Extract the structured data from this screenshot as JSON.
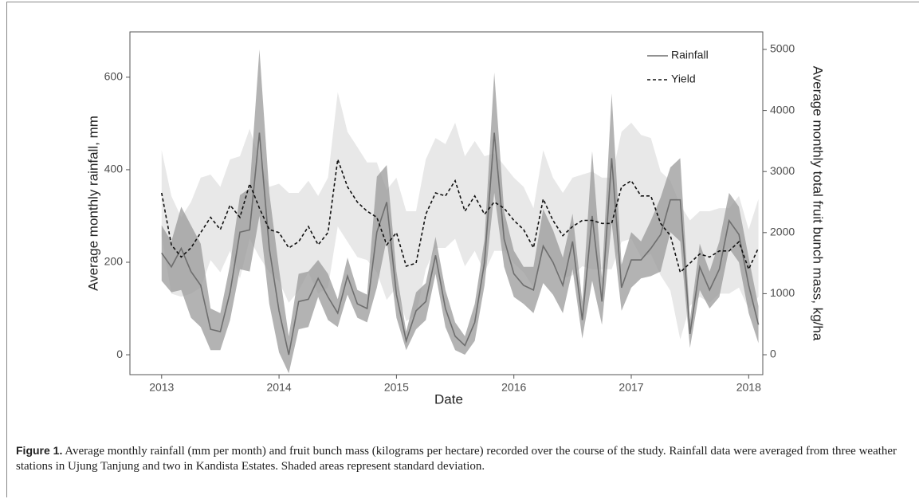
{
  "chart_data": {
    "type": "line",
    "xlabel": "Date",
    "ylabel": "Average monthly rainfall, mm",
    "y2label": "Average monthly total fruit bunch mass, kg/ha",
    "x": [
      2013,
      2013.083,
      2013.167,
      2013.25,
      2013.333,
      2013.417,
      2013.5,
      2013.583,
      2013.667,
      2013.75,
      2013.833,
      2013.917,
      2014,
      2014.083,
      2014.167,
      2014.25,
      2014.333,
      2014.417,
      2014.5,
      2014.583,
      2014.667,
      2014.75,
      2014.833,
      2014.917,
      2015,
      2015.083,
      2015.167,
      2015.25,
      2015.333,
      2015.417,
      2015.5,
      2015.583,
      2015.667,
      2015.75,
      2015.833,
      2015.917,
      2016,
      2016.083,
      2016.167,
      2016.25,
      2016.333,
      2016.417,
      2016.5,
      2016.583,
      2016.667,
      2016.75,
      2016.833,
      2016.917,
      2017,
      2017.083,
      2017.167,
      2017.25,
      2017.333,
      2017.417,
      2017.5,
      2017.583,
      2017.667,
      2017.75,
      2017.833,
      2017.917,
      2018,
      2018.083
    ],
    "xlim": [
      2012.73,
      2018.12
    ],
    "xticks": [
      2013,
      2014,
      2015,
      2016,
      2017,
      2018
    ],
    "ylim": [
      -43,
      698
    ],
    "yticks": [
      0,
      200,
      400,
      600
    ],
    "y2lim": [
      -326,
      5287
    ],
    "y2ticks": [
      0,
      1000,
      2000,
      3000,
      4000,
      5000
    ],
    "legend": "top-right",
    "series": [
      {
        "name": "Rainfall",
        "color": "#6e6e6e",
        "band_color": "#9a9a9a",
        "dash": false,
        "values": [
          220,
          190,
          230,
          180,
          150,
          55,
          50,
          135,
          265,
          270,
          480,
          230,
          95,
          0,
          115,
          120,
          165,
          125,
          90,
          170,
          110,
          100,
          265,
          330,
          130,
          30,
          95,
          115,
          215,
          100,
          40,
          20,
          70,
          200,
          480,
          250,
          175,
          150,
          140,
          235,
          200,
          150,
          245,
          75,
          300,
          115,
          425,
          145,
          205,
          205,
          230,
          260,
          335,
          335,
          45,
          190,
          140,
          185,
          290,
          260,
          150,
          65
        ],
        "sd": [
          60,
          55,
          90,
          100,
          90,
          45,
          40,
          60,
          80,
          90,
          180,
          120,
          90,
          40,
          60,
          60,
          40,
          50,
          30,
          40,
          30,
          30,
          120,
          80,
          50,
          20,
          40,
          40,
          40,
          40,
          30,
          20,
          40,
          50,
          130,
          60,
          50,
          40,
          50,
          80,
          70,
          60,
          60,
          40,
          140,
          50,
          140,
          50,
          60,
          40,
          60,
          80,
          70,
          90,
          30,
          50,
          40,
          60,
          60,
          60,
          60,
          40
        ]
      },
      {
        "name": "Yield",
        "axis": "y2",
        "color": "#111111",
        "band_color": "#d8d8d8",
        "dash": true,
        "values": [
          2650,
          1800,
          1600,
          1750,
          2000,
          2250,
          2050,
          2450,
          2250,
          2800,
          2400,
          2050,
          2000,
          1750,
          1850,
          2100,
          1800,
          2000,
          3200,
          2750,
          2500,
          2350,
          2250,
          1800,
          2000,
          1450,
          1500,
          2300,
          2650,
          2600,
          2850,
          2350,
          2600,
          2300,
          2500,
          2400,
          2200,
          2050,
          1750,
          2550,
          2200,
          1950,
          2100,
          2200,
          2200,
          2150,
          2150,
          2750,
          2850,
          2600,
          2600,
          2150,
          1950,
          1350,
          1500,
          1650,
          1600,
          1700,
          1700,
          1850,
          1400,
          1750
        ],
        "sd": [
          700,
          800,
          650,
          750,
          900,
          700,
          700,
          750,
          1000,
          900,
          800,
          700,
          800,
          900,
          800,
          750,
          800,
          900,
          1100,
          900,
          900,
          800,
          900,
          900,
          900,
          900,
          850,
          900,
          900,
          850,
          950,
          900,
          900,
          950,
          800,
          700,
          700,
          700,
          650,
          800,
          700,
          700,
          800,
          750,
          800,
          750,
          750,
          900,
          950,
          1000,
          950,
          850,
          900,
          1100,
          700,
          700,
          750,
          700,
          700,
          750,
          650,
          800
        ]
      }
    ]
  },
  "caption": {
    "label": "Figure 1.",
    "text": "Average monthly rainfall (mm per month) and fruit bunch mass (kilograms per hectare) recorded over the course of the study. Rainfall data were averaged from three weather stations in Ujung Tanjung and two in Kandista Estates. Shaded areas represent standard deviation."
  }
}
